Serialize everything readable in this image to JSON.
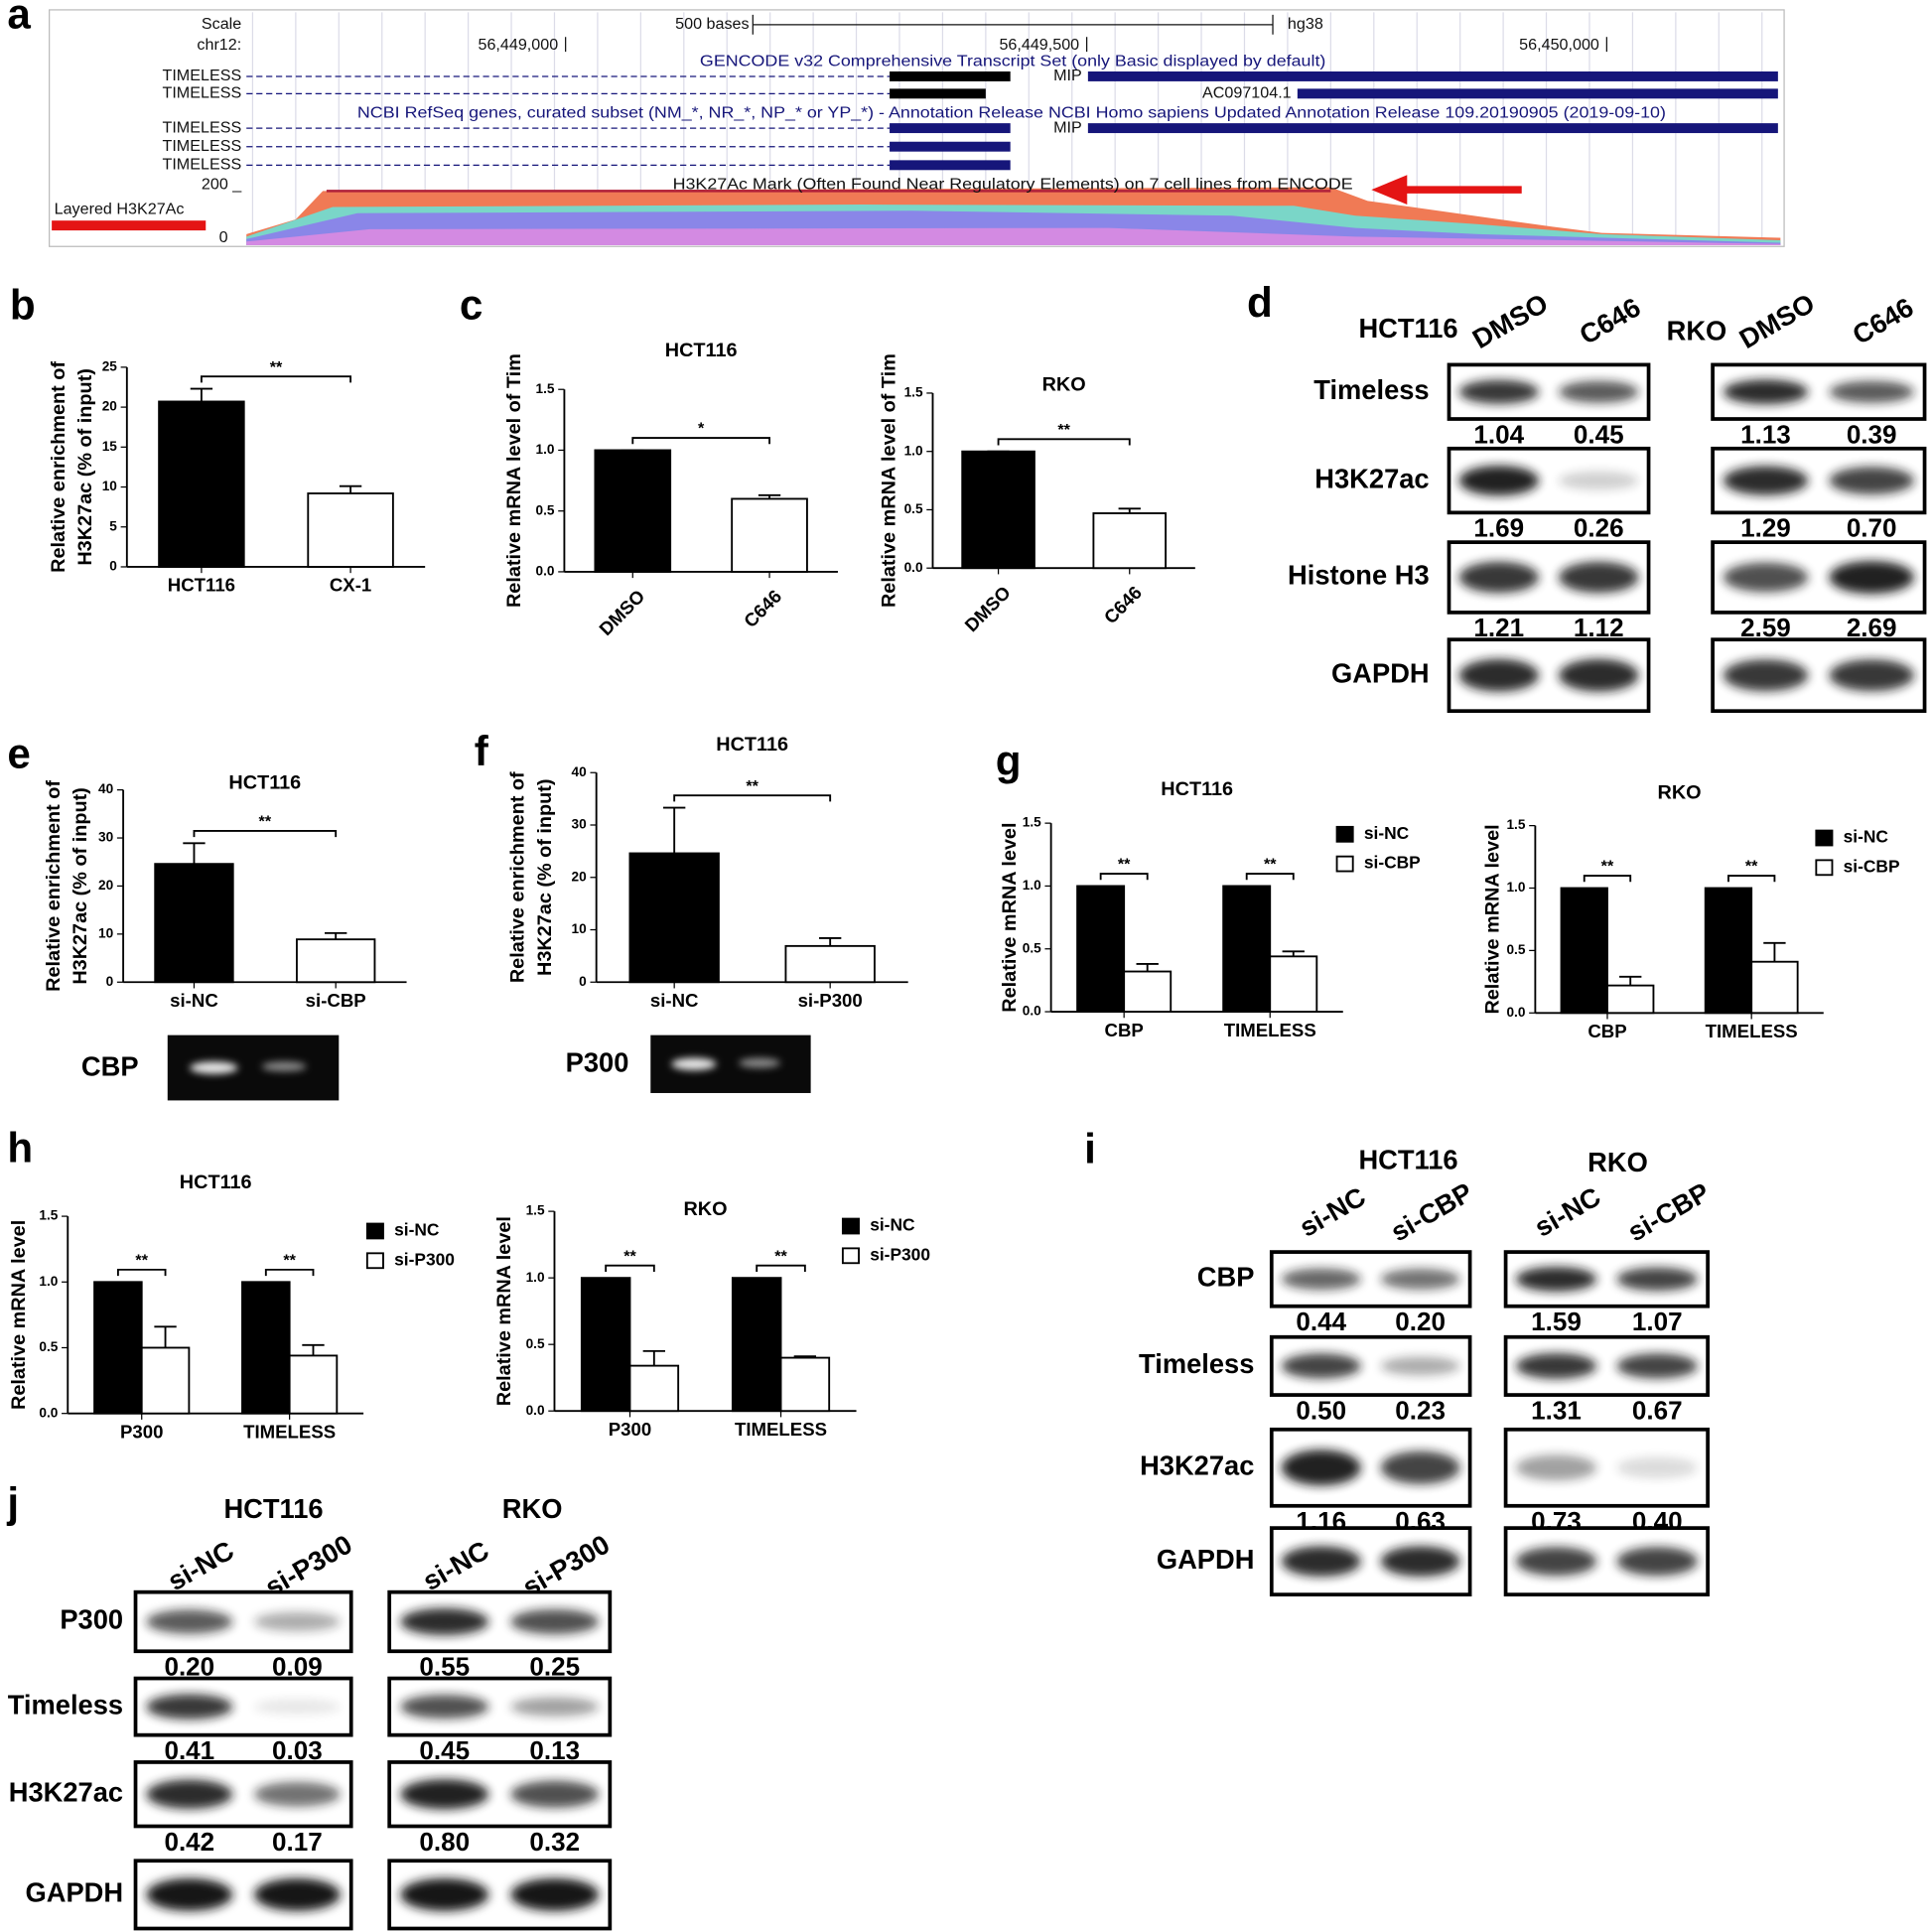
{
  "genome_browser": {
    "letter": "a",
    "scale_label": "Scale",
    "chrom_label": "chr12:",
    "scale_bar_label": "500 bases",
    "assembly": "hg38",
    "positions": [
      "56,449,000",
      "56,449,500",
      "56,450,000"
    ],
    "gencode_title": "GENCODE v32 Comprehensive Transcript Set (only Basic displayed by default)",
    "refseq_title": "NCBI RefSeq genes, curated subset (NM_*, NR_*, NP_* or YP_*) - Annotation Release NCBI Homo sapiens Updated Annotation Release 109.20190905 (2019-09-10)",
    "gene_labels": [
      "TIMELESS",
      "TIMELESS",
      "TIMELESS",
      "TIMELESS",
      "TIMELESS"
    ],
    "mip_labels": [
      "MIP",
      "MIP"
    ],
    "lnc_label": "AC097104.1",
    "track_title": "H3K27Ac Mark (Often Found Near Regulatory Elements) on 7 cell lines from ENCODE",
    "track_max": "200 _",
    "track_min": "0",
    "track_name": "Layered H3K27Ac"
  },
  "chart_data": [
    {
      "type": "bar",
      "letter": "b",
      "y_label": [
        "Relative enrichment of",
        "H3K27ac (% of input)"
      ],
      "categories": [
        "HCT116",
        "CX-1"
      ],
      "values": [
        20.7,
        9.2
      ],
      "errors": [
        1.6,
        0.9
      ],
      "color": "#000000",
      "value_colors": [
        "#000000",
        "#ffffff"
      ],
      "ylim": [
        0,
        25
      ],
      "yticks": [
        0,
        5,
        10,
        15,
        20,
        25
      ],
      "significance": [
        "**"
      ]
    },
    {
      "type": "bar",
      "letter": "c",
      "title": "HCT116",
      "y_label": [
        "Relative mRNA level of Tim"
      ],
      "categories": [
        "DMSO",
        "C646"
      ],
      "values": [
        1.0,
        0.6
      ],
      "errors": [
        0,
        0.03
      ],
      "value_colors": [
        "#000000",
        "#ffffff"
      ],
      "ylim": [
        0,
        1.5
      ],
      "yticks": [
        {
          "value": 0,
          "label": "0.0"
        },
        0.5,
        {
          "value": 1,
          "label": "1.0"
        },
        1.5
      ],
      "significance": [
        "*"
      ]
    },
    {
      "type": "bar",
      "title": "RKO",
      "y_label": [
        "Relative mRNA level of Tim"
      ],
      "categories": [
        "DMSO",
        "C646"
      ],
      "values": [
        1.0,
        0.47
      ],
      "errors": [
        0,
        0.04
      ],
      "value_colors": [
        "#000000",
        "#ffffff"
      ],
      "ylim": [
        0,
        1.5
      ],
      "yticks": [
        {
          "value": 0,
          "label": "0.0"
        },
        0.5,
        {
          "value": 1,
          "label": "1.0"
        },
        1.5
      ],
      "significance": [
        "**"
      ]
    },
    {
      "type": "bar",
      "letter": "e",
      "title": "HCT116",
      "y_label": [
        "Relative enrichment of",
        "H3K27ac (% of input)"
      ],
      "categories": [
        "si-NC",
        "si-CBP"
      ],
      "values": [
        24.6,
        8.9
      ],
      "errors": [
        4.3,
        1.3
      ],
      "value_colors": [
        "#000000",
        "#ffffff"
      ],
      "ylim": [
        0,
        40
      ],
      "yticks": [
        0,
        10,
        20,
        30,
        40
      ],
      "significance": [
        "**"
      ]
    },
    {
      "type": "bar",
      "letter": "f",
      "title": "HCT116",
      "y_label": [
        "Relative enrichment of",
        "H3K27ac (% of input)"
      ],
      "categories": [
        "si-NC",
        "si-P300"
      ],
      "values": [
        24.6,
        6.9
      ],
      "errors": [
        8.7,
        1.5
      ],
      "value_colors": [
        "#000000",
        "#ffffff"
      ],
      "ylim": [
        0,
        40
      ],
      "yticks": [
        0,
        10,
        20,
        30,
        40
      ],
      "significance": [
        "**"
      ]
    },
    {
      "type": "grouped_bar",
      "letter": "g",
      "title": "HCT116",
      "y_label": [
        "Relative mRNA level"
      ],
      "categories": [
        "CBP",
        "TIMELESS"
      ],
      "series": [
        {
          "name": "si-NC",
          "color": "#000000",
          "values": [
            1.0,
            1.0
          ]
        },
        {
          "name": "si-CBP",
          "color": "#ffffff",
          "values": [
            0.32,
            0.44
          ],
          "errors": [
            0.06,
            0.04
          ]
        }
      ],
      "ylim": [
        0,
        1.5
      ],
      "yticks": [
        {
          "value": 0,
          "label": "0.0"
        },
        0.5,
        {
          "value": 1,
          "label": "1.0"
        },
        1.5
      ],
      "significance": [
        "**",
        "**"
      ]
    },
    {
      "type": "grouped_bar",
      "title": "RKO",
      "y_label": [
        "Relative mRNA level"
      ],
      "categories": [
        "CBP",
        "TIMELESS"
      ],
      "series": [
        {
          "name": "si-NC",
          "color": "#000000",
          "values": [
            1.0,
            1.0
          ]
        },
        {
          "name": "si-CBP",
          "color": "#ffffff",
          "values": [
            0.22,
            0.41
          ],
          "errors": [
            0.07,
            0.15
          ]
        }
      ],
      "ylim": [
        0,
        1.5
      ],
      "yticks": [
        {
          "value": 0,
          "label": "0.0"
        },
        0.5,
        {
          "value": 1,
          "label": "1.0"
        },
        1.5
      ],
      "significance": [
        "**",
        "**"
      ]
    },
    {
      "type": "grouped_bar",
      "letter": "h",
      "title": "HCT116",
      "y_label": [
        "Relative mRNA level"
      ],
      "categories": [
        "P300",
        "TIMELESS"
      ],
      "series": [
        {
          "name": "si-NC",
          "color": "#000000",
          "values": [
            1.0,
            1.0
          ]
        },
        {
          "name": "si-P300",
          "color": "#ffffff",
          "values": [
            0.5,
            0.44
          ],
          "errors": [
            0.16,
            0.08
          ]
        }
      ],
      "ylim": [
        0,
        1.5
      ],
      "yticks": [
        {
          "value": 0,
          "label": "0.0"
        },
        0.5,
        {
          "value": 1,
          "label": "1.0"
        },
        1.5
      ],
      "significance": [
        "**",
        "**"
      ]
    },
    {
      "type": "grouped_bar",
      "title": "RKO",
      "y_label": [
        "Relative mRNA level"
      ],
      "categories": [
        "P300",
        "TIMELESS"
      ],
      "series": [
        {
          "name": "si-NC",
          "color": "#000000",
          "values": [
            1.0,
            1.0
          ]
        },
        {
          "name": "si-P300",
          "color": "#ffffff",
          "values": [
            0.34,
            0.4
          ],
          "errors": [
            0.11,
            0.01
          ]
        }
      ],
      "ylim": [
        0,
        1.5
      ],
      "yticks": [
        {
          "value": 0,
          "label": "0.0"
        },
        0.5,
        {
          "value": 1,
          "label": "1.0"
        },
        1.5
      ],
      "significance": [
        "**",
        "**"
      ]
    }
  ],
  "gels": [
    {
      "label": "CBP"
    },
    {
      "label": "P300"
    }
  ],
  "blots": [
    {
      "letter": "d",
      "rows": [
        "Timeless",
        "H3K27ac",
        "Histone H3",
        "GAPDH"
      ],
      "groups": [
        {
          "name": "HCT116",
          "lanes": [
            "DMSO",
            "C646"
          ],
          "quant": [
            [
              "1.04",
              "0.45"
            ],
            [
              "1.69",
              "0.26"
            ],
            [
              "1.21",
              "1.12"
            ]
          ]
        },
        {
          "name": "RKO",
          "lanes": [
            "DMSO",
            "C646"
          ],
          "quant": [
            [
              "1.13",
              "0.39"
            ],
            [
              "1.29",
              "0.70"
            ],
            [
              "2.59",
              "2.69"
            ]
          ]
        }
      ]
    },
    {
      "letter": "i",
      "rows": [
        "CBP",
        "Timeless",
        "H3K27ac",
        "GAPDH"
      ],
      "groups": [
        {
          "name": "HCT116",
          "lanes": [
            "si-NC",
            "si-CBP"
          ],
          "quant": [
            [
              "0.44",
              "0.20"
            ],
            [
              "0.50",
              "0.23"
            ],
            [
              "1.16",
              "0.63"
            ]
          ]
        },
        {
          "name": "RKO",
          "lanes": [
            "si-NC",
            "si-CBP"
          ],
          "quant": [
            [
              "1.59",
              "1.07"
            ],
            [
              "1.31",
              "0.67"
            ],
            [
              "0.73",
              "0.40"
            ]
          ]
        }
      ]
    },
    {
      "letter": "j",
      "rows": [
        "P300",
        "Timeless",
        "H3K27ac",
        "GAPDH"
      ],
      "groups": [
        {
          "name": "HCT116",
          "lanes": [
            "si-NC",
            "si-P300"
          ],
          "quant": [
            [
              "0.20",
              "0.09"
            ],
            [
              "0.41",
              "0.03"
            ],
            [
              "0.42",
              "0.17"
            ]
          ]
        },
        {
          "name": "RKO",
          "lanes": [
            "si-NC",
            "si-P300"
          ],
          "quant": [
            [
              "0.55",
              "0.25"
            ],
            [
              "0.45",
              "0.13"
            ],
            [
              "0.80",
              "0.32"
            ]
          ]
        }
      ]
    }
  ]
}
